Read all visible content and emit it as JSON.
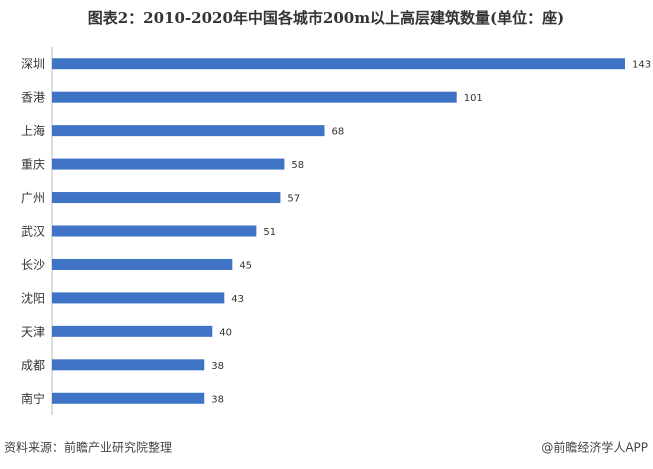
{
  "chart_data": {
    "type": "bar",
    "orientation": "horizontal",
    "title": "图表2：2010-2020年中国各城市200m以上高层建筑数量(单位：座)",
    "categories": [
      "深圳",
      "香港",
      "上海",
      "重庆",
      "广州",
      "武汉",
      "长沙",
      "沈阳",
      "天津",
      "成都",
      "南宁"
    ],
    "values": [
      143,
      101,
      68,
      58,
      57,
      51,
      45,
      43,
      40,
      38,
      38
    ],
    "color": "#3f73c6"
  },
  "footer": {
    "source": "资料来源：前瞻产业研究院整理",
    "credit": "@前瞻经济学人APP"
  }
}
